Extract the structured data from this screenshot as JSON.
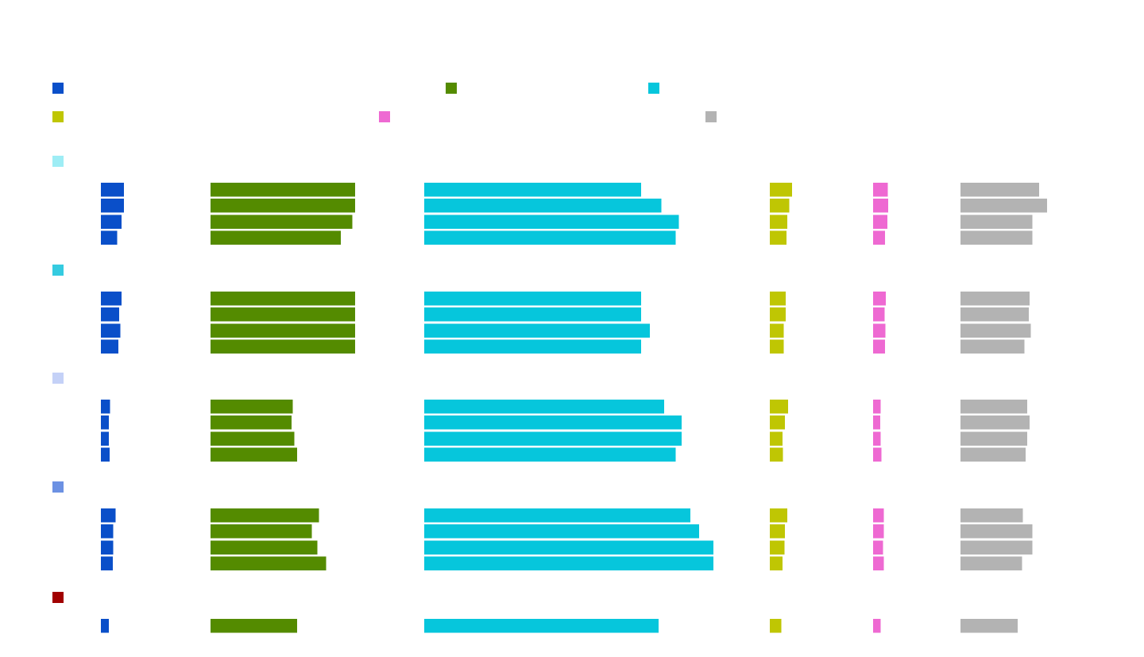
{
  "chart_data": {
    "type": "bar",
    "orientation": "horizontal",
    "layout": "small-multiples",
    "legend": {
      "placement": "top",
      "entries": [
        {
          "name": "",
          "color": "#0a4fc9"
        },
        {
          "name": "",
          "color": "#548b00"
        },
        {
          "name": "",
          "color": "#06c6dc"
        },
        {
          "name": "",
          "color": "#bfc603"
        },
        {
          "name": "",
          "color": "#ee69d2"
        },
        {
          "name": "",
          "color": "#b3b3b3"
        }
      ]
    },
    "groups": [
      {
        "color": "#9eedf5",
        "rows": [
          [
            {
              "c": 0,
              "v": 0.43
            },
            {
              "c": 1,
              "v": 1.0
            },
            {
              "c": 2,
              "v": 0.75
            },
            {
              "c": 3,
              "v": 0.44
            },
            {
              "c": 4,
              "v": 0.39
            },
            {
              "c": 5,
              "v": 0.91
            }
          ],
          [
            {
              "c": 0,
              "v": 0.43
            },
            {
              "c": 1,
              "v": 1.0
            },
            {
              "c": 2,
              "v": 0.82
            },
            {
              "c": 3,
              "v": 0.38
            },
            {
              "c": 4,
              "v": 0.4
            },
            {
              "c": 5,
              "v": 1.0
            }
          ],
          [
            {
              "c": 0,
              "v": 0.38
            },
            {
              "c": 1,
              "v": 0.98
            },
            {
              "c": 2,
              "v": 0.88
            },
            {
              "c": 3,
              "v": 0.34
            },
            {
              "c": 4,
              "v": 0.38
            },
            {
              "c": 5,
              "v": 0.83
            }
          ],
          [
            {
              "c": 0,
              "v": 0.3
            },
            {
              "c": 1,
              "v": 0.9
            },
            {
              "c": 2,
              "v": 0.87
            },
            {
              "c": 3,
              "v": 0.33
            },
            {
              "c": 4,
              "v": 0.32
            },
            {
              "c": 5,
              "v": 0.83
            }
          ]
        ]
      },
      {
        "color": "#35cbe0",
        "rows": [
          [
            {
              "c": 0,
              "v": 0.38
            },
            {
              "c": 1,
              "v": 1.0
            },
            {
              "c": 2,
              "v": 0.75
            },
            {
              "c": 3,
              "v": 0.31
            },
            {
              "c": 4,
              "v": 0.34
            },
            {
              "c": 5,
              "v": 0.8
            }
          ],
          [
            {
              "c": 0,
              "v": 0.34
            },
            {
              "c": 1,
              "v": 1.0
            },
            {
              "c": 2,
              "v": 0.75
            },
            {
              "c": 3,
              "v": 0.31
            },
            {
              "c": 4,
              "v": 0.31
            },
            {
              "c": 5,
              "v": 0.79
            }
          ],
          [
            {
              "c": 0,
              "v": 0.36
            },
            {
              "c": 1,
              "v": 1.0
            },
            {
              "c": 2,
              "v": 0.78
            },
            {
              "c": 3,
              "v": 0.27
            },
            {
              "c": 4,
              "v": 0.33
            },
            {
              "c": 5,
              "v": 0.81
            }
          ],
          [
            {
              "c": 0,
              "v": 0.32
            },
            {
              "c": 1,
              "v": 1.0
            },
            {
              "c": 2,
              "v": 0.75
            },
            {
              "c": 3,
              "v": 0.27
            },
            {
              "c": 4,
              "v": 0.32
            },
            {
              "c": 5,
              "v": 0.74
            }
          ]
        ]
      },
      {
        "color": "#c4d1f7",
        "rows": [
          [
            {
              "c": 0,
              "v": 0.17
            },
            {
              "c": 1,
              "v": 0.57
            },
            {
              "c": 2,
              "v": 0.83
            },
            {
              "c": 3,
              "v": 0.36
            },
            {
              "c": 4,
              "v": 0.2
            },
            {
              "c": 5,
              "v": 0.77
            }
          ],
          [
            {
              "c": 0,
              "v": 0.15
            },
            {
              "c": 1,
              "v": 0.56
            },
            {
              "c": 2,
              "v": 0.89
            },
            {
              "c": 3,
              "v": 0.3
            },
            {
              "c": 4,
              "v": 0.19
            },
            {
              "c": 5,
              "v": 0.8
            }
          ],
          [
            {
              "c": 0,
              "v": 0.15
            },
            {
              "c": 1,
              "v": 0.58
            },
            {
              "c": 2,
              "v": 0.89
            },
            {
              "c": 3,
              "v": 0.25
            },
            {
              "c": 4,
              "v": 0.2
            },
            {
              "c": 5,
              "v": 0.77
            }
          ],
          [
            {
              "c": 0,
              "v": 0.16
            },
            {
              "c": 1,
              "v": 0.6
            },
            {
              "c": 2,
              "v": 0.87
            },
            {
              "c": 3,
              "v": 0.26
            },
            {
              "c": 4,
              "v": 0.22
            },
            {
              "c": 5,
              "v": 0.75
            }
          ]
        ]
      },
      {
        "color": "#6c91e3",
        "rows": [
          [
            {
              "c": 0,
              "v": 0.27
            },
            {
              "c": 1,
              "v": 0.75
            },
            {
              "c": 2,
              "v": 0.92
            },
            {
              "c": 3,
              "v": 0.34
            },
            {
              "c": 4,
              "v": 0.29
            },
            {
              "c": 5,
              "v": 0.72
            }
          ],
          [
            {
              "c": 0,
              "v": 0.23
            },
            {
              "c": 1,
              "v": 0.7
            },
            {
              "c": 2,
              "v": 0.95
            },
            {
              "c": 3,
              "v": 0.3
            },
            {
              "c": 4,
              "v": 0.29
            },
            {
              "c": 5,
              "v": 0.83
            }
          ],
          [
            {
              "c": 0,
              "v": 0.23
            },
            {
              "c": 1,
              "v": 0.74
            },
            {
              "c": 2,
              "v": 1.0
            },
            {
              "c": 3,
              "v": 0.29
            },
            {
              "c": 4,
              "v": 0.27
            },
            {
              "c": 5,
              "v": 0.83
            }
          ],
          [
            {
              "c": 0,
              "v": 0.22
            },
            {
              "c": 1,
              "v": 0.8
            },
            {
              "c": 2,
              "v": 1.0
            },
            {
              "c": 3,
              "v": 0.25
            },
            {
              "c": 4,
              "v": 0.29
            },
            {
              "c": 5,
              "v": 0.71
            }
          ]
        ]
      },
      {
        "color": "#a10000",
        "rows": [
          [
            {
              "c": 0,
              "v": 0.15
            },
            {
              "c": 1,
              "v": 0.6
            },
            {
              "c": 2,
              "v": 0.81
            },
            {
              "c": 3,
              "v": 0.23
            },
            {
              "c": 4,
              "v": 0.2
            },
            {
              "c": 5,
              "v": 0.66
            }
          ]
        ]
      }
    ]
  }
}
